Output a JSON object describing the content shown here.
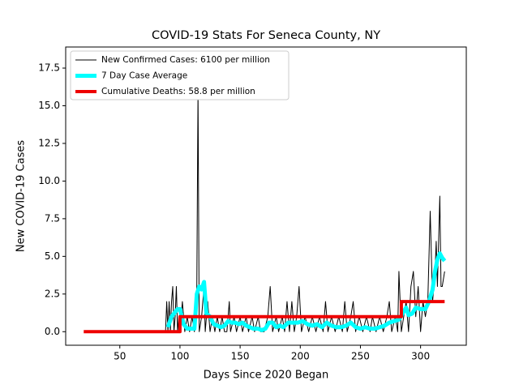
{
  "chart_data": {
    "type": "line",
    "title": "COVID-19 Stats For Seneca County, NY",
    "xlabel": "Days Since 2020 Began",
    "ylabel": "New COVID-19 Cases",
    "xlim": [
      5,
      338
    ],
    "ylim": [
      -0.9,
      18.9
    ],
    "xticks": [
      50,
      100,
      150,
      200,
      250,
      300
    ],
    "yticks": [
      {
        "value": 0,
        "label": "0.0"
      },
      {
        "value": 2.5,
        "label": "2.5"
      },
      {
        "value": 5,
        "label": "5.0"
      },
      {
        "value": 7.5,
        "label": "7.5"
      },
      {
        "value": 10,
        "label": "10.0"
      },
      {
        "value": 12.5,
        "label": "12.5"
      },
      {
        "value": 15,
        "label": "15.0"
      },
      {
        "value": 17.5,
        "label": "17.5"
      }
    ],
    "legend": "upper left",
    "series": [
      {
        "name": "New Confirmed Cases: 6100 per million",
        "color": "#000000",
        "width": 1,
        "x": [
          88,
          89,
          90,
          91,
          92,
          93,
          94,
          95,
          96,
          97,
          98,
          99,
          100,
          102,
          104,
          106,
          108,
          110,
          112,
          114,
          115,
          116,
          118,
          120,
          121,
          123,
          125,
          127,
          129,
          131,
          133,
          135,
          137,
          139,
          141,
          142,
          145,
          147,
          150,
          152,
          155,
          157,
          160,
          162,
          165,
          167,
          170,
          173,
          175,
          177,
          180,
          182,
          185,
          187,
          189,
          191,
          193,
          195,
          197,
          199,
          201,
          204,
          207,
          210,
          213,
          216,
          219,
          221,
          223,
          226,
          229,
          232,
          235,
          237,
          239,
          242,
          244,
          246,
          249,
          252,
          255,
          258,
          260,
          263,
          266,
          269,
          272,
          274,
          276,
          279,
          281,
          282,
          284,
          286,
          288,
          290,
          292,
          294,
          296,
          298,
          300,
          302,
          304,
          306,
          308,
          310,
          312,
          313,
          314,
          316,
          317,
          318,
          320
        ],
        "values": [
          0,
          2,
          0,
          2,
          0,
          2,
          3,
          0,
          1,
          3,
          0,
          1,
          0,
          2,
          0,
          1,
          0,
          1,
          0,
          3,
          16,
          0,
          1,
          3,
          0,
          2,
          0,
          1,
          0,
          1,
          0,
          1,
          0,
          0,
          2,
          0,
          1,
          0,
          1,
          0,
          1,
          0,
          1,
          0,
          1,
          0,
          0,
          1,
          3,
          0,
          1,
          0,
          1,
          0,
          2,
          0,
          2,
          0,
          1,
          3,
          0,
          1,
          0,
          1,
          0,
          1,
          0,
          2,
          0,
          1,
          0,
          1,
          0,
          2,
          0,
          1,
          2,
          0,
          1,
          0,
          1,
          0,
          1,
          0,
          1,
          0,
          1,
          2,
          0,
          1,
          0,
          4,
          0,
          1,
          2,
          0,
          3,
          4,
          1,
          3,
          0,
          2,
          1,
          2,
          8,
          2,
          4,
          6,
          3,
          9,
          3,
          3,
          4
        ]
      },
      {
        "name": "7 Day Case Average",
        "color": "#00ffff",
        "width": 5,
        "x": [
          90,
          93,
          96,
          98,
          100,
          103,
          106,
          109,
          112,
          114,
          116,
          118,
          120,
          122,
          125,
          128,
          131,
          134,
          137,
          140,
          143,
          146,
          149,
          152,
          155,
          158,
          161,
          165,
          168,
          171,
          174,
          177,
          180,
          183,
          186,
          190,
          194,
          198,
          202,
          206,
          210,
          214,
          218,
          222,
          226,
          230,
          234,
          238,
          242,
          246,
          250,
          254,
          258,
          262,
          266,
          270,
          274,
          278,
          282,
          285,
          288,
          290,
          293,
          296,
          300,
          304,
          307,
          310,
          312,
          314,
          316,
          318,
          320
        ],
        "values": [
          0.3,
          1,
          1.3,
          1.5,
          1.5,
          0.5,
          0.2,
          0.2,
          0.2,
          2.5,
          3,
          2.8,
          3.3,
          1.2,
          1,
          0.5,
          0.4,
          0.3,
          0.4,
          0.7,
          0.6,
          0.6,
          0.5,
          0.6,
          0.4,
          0.3,
          0.2,
          0.2,
          0.1,
          0.2,
          0.6,
          0.6,
          0.3,
          0.4,
          0.3,
          0.6,
          0.6,
          0.6,
          0.7,
          0.5,
          0.4,
          0.5,
          0.3,
          0.6,
          0.4,
          0.3,
          0.3,
          0.4,
          0.6,
          0.3,
          0.2,
          0.3,
          0.2,
          0.2,
          0.3,
          0.4,
          0.6,
          0.7,
          0.8,
          1.2,
          1.6,
          1.1,
          1.2,
          1.6,
          1.5,
          1.5,
          2.0,
          2.8,
          4.0,
          4.8,
          5.2,
          4.9,
          4.7
        ]
      },
      {
        "name": "Cumulative Deaths: 58.8 per million",
        "color": "#ee0000",
        "width": 4,
        "x": [
          20,
          100,
          100,
          284,
          284,
          320
        ],
        "values": [
          0,
          0,
          1,
          1,
          2,
          2
        ]
      }
    ]
  }
}
